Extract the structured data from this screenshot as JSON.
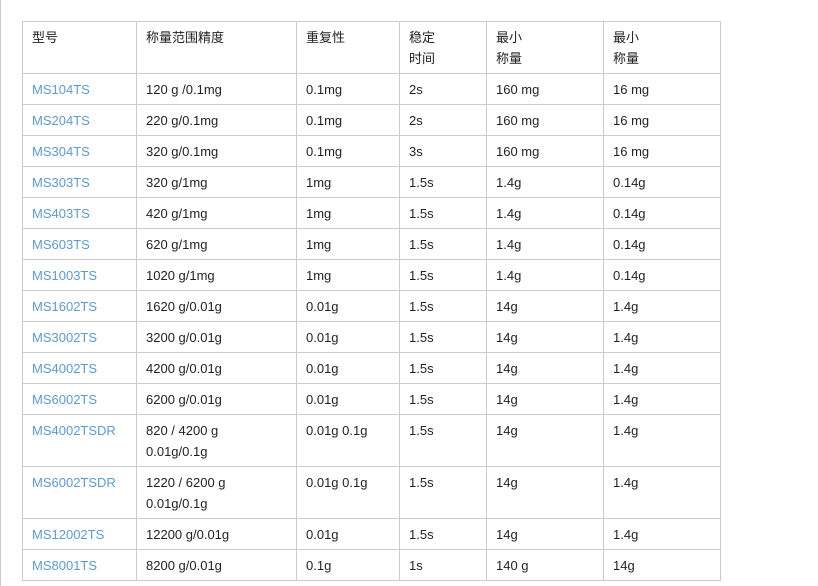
{
  "headers": [
    "型号",
    "称量范围精度",
    "重复性",
    "稳定\n时间",
    "最小\n称量",
    "最小\n称量"
  ],
  "rows": [
    [
      "MS104TS",
      "120 g /0.1mg",
      "0.1mg",
      "2s",
      "160 mg",
      "16 mg"
    ],
    [
      "MS204TS",
      "220 g/0.1mg",
      "0.1mg",
      "2s",
      "160 mg",
      "16 mg"
    ],
    [
      "MS304TS",
      "320 g/0.1mg",
      "0.1mg",
      "3s",
      "160 mg",
      "16 mg"
    ],
    [
      "MS303TS",
      "320 g/1mg",
      "1mg",
      "1.5s",
      "1.4g",
      "0.14g"
    ],
    [
      "MS403TS",
      "420 g/1mg",
      "1mg",
      "1.5s",
      "1.4g",
      "0.14g"
    ],
    [
      "MS603TS",
      "620 g/1mg",
      "1mg",
      "1.5s",
      "1.4g",
      "0.14g"
    ],
    [
      "MS1003TS",
      "1020 g/1mg",
      "1mg",
      "1.5s",
      "1.4g",
      "0.14g"
    ],
    [
      "MS1602TS",
      "1620 g/0.01g",
      "0.01g",
      "1.5s",
      "14g",
      "1.4g"
    ],
    [
      "MS3002TS",
      "3200 g/0.01g",
      "0.01g",
      "1.5s",
      "14g",
      "1.4g"
    ],
    [
      "MS4002TS",
      "4200 g/0.01g",
      "0.01g",
      "1.5s",
      "14g",
      "1.4g"
    ],
    [
      "MS6002TS",
      "6200 g/0.01g",
      "0.01g",
      "1.5s",
      "14g",
      "1.4g"
    ],
    [
      "MS4002TSDR",
      "820 / 4200 g\n0.01g/0.1g",
      "0.01g 0.1g",
      "1.5s",
      "14g",
      "1.4g"
    ],
    [
      "MS6002TSDR",
      "1220 / 6200 g\n0.01g/0.1g",
      "0.01g 0.1g",
      "1.5s",
      "14g",
      "1.4g"
    ],
    [
      "MS12002TS",
      "12200 g/0.01g",
      "0.01g",
      "1.5s",
      "14g",
      "1.4g"
    ],
    [
      "MS8001TS",
      "8200 g/0.01g",
      "0.1g",
      "1s",
      "140 g",
      "14g"
    ]
  ],
  "colors": {
    "link": "#5b9bd5",
    "border": "#cccccc"
  }
}
